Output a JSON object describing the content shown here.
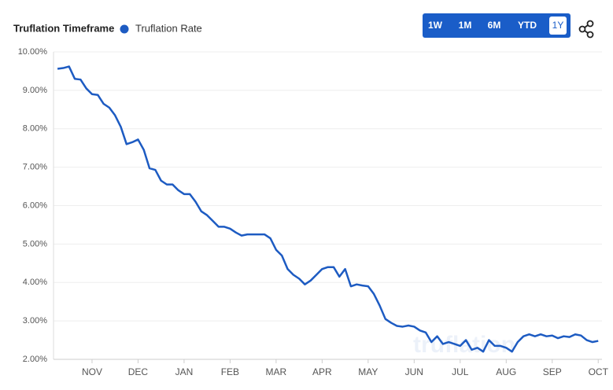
{
  "chart_data": {
    "type": "line",
    "title": "Truflation Timeframe",
    "buttons": [
      "1W",
      "1M",
      "6M",
      "YTD",
      "1Y"
    ],
    "selected_button": "1Y",
    "watermark": "truflation",
    "categories": [
      null,
      null,
      null,
      null,
      null,
      null,
      "NOV",
      null,
      null,
      null,
      null,
      null,
      null,
      null,
      "DEC",
      null,
      null,
      null,
      null,
      null,
      null,
      null,
      "JAN",
      null,
      null,
      null,
      null,
      null,
      null,
      null,
      "FEB",
      null,
      null,
      null,
      null,
      null,
      null,
      null,
      "MAR",
      null,
      null,
      null,
      null,
      null,
      null,
      null,
      "APR",
      null,
      null,
      null,
      null,
      null,
      null,
      null,
      "MAY",
      null,
      null,
      null,
      null,
      null,
      null,
      null,
      "JUN",
      null,
      null,
      null,
      null,
      null,
      null,
      null,
      "JUL",
      null,
      null,
      null,
      null,
      null,
      null,
      null,
      "AUG",
      null,
      null,
      null,
      null,
      null,
      null,
      null,
      "SEP",
      null,
      null,
      null,
      null,
      null,
      null,
      null,
      "OCT"
    ],
    "series": [
      {
        "name": "Truflation Rate",
        "color": "#1d5bc2",
        "values": [
          9.56,
          9.58,
          9.62,
          9.3,
          9.28,
          9.05,
          8.9,
          8.88,
          8.65,
          8.55,
          8.35,
          8.05,
          7.6,
          7.65,
          7.72,
          7.45,
          6.97,
          6.93,
          6.65,
          6.55,
          6.55,
          6.4,
          6.3,
          6.3,
          6.1,
          5.85,
          5.75,
          5.6,
          5.45,
          5.45,
          5.4,
          5.3,
          5.22,
          5.25,
          5.25,
          5.25,
          5.25,
          5.15,
          4.85,
          4.7,
          4.35,
          4.2,
          4.1,
          3.95,
          4.05,
          4.2,
          4.35,
          4.4,
          4.4,
          4.15,
          4.35,
          3.9,
          3.95,
          3.92,
          3.9,
          3.7,
          3.4,
          3.05,
          2.95,
          2.87,
          2.85,
          2.88,
          2.85,
          2.75,
          2.7,
          2.45,
          2.6,
          2.4,
          2.45,
          2.4,
          2.35,
          2.5,
          2.25,
          2.3,
          2.2,
          2.5,
          2.35,
          2.35,
          2.3,
          2.2,
          2.45,
          2.6,
          2.65,
          2.6,
          2.65,
          2.6,
          2.62,
          2.55,
          2.6,
          2.58,
          2.65,
          2.62,
          2.5,
          2.45,
          2.48
        ]
      }
    ],
    "ylim": [
      2,
      10
    ],
    "yticks": [
      {
        "value": 2,
        "label": "2.00%"
      },
      {
        "value": 3,
        "label": "3.00%"
      },
      {
        "value": 4,
        "label": "4.00%"
      },
      {
        "value": 5,
        "label": "5.00%"
      },
      {
        "value": 6,
        "label": "6.00%"
      },
      {
        "value": 7,
        "label": "7.00%"
      },
      {
        "value": 8,
        "label": "8.00%"
      },
      {
        "value": 9,
        "label": "9.00%"
      },
      {
        "value": 10,
        "label": "10.00%"
      }
    ],
    "grid": true
  }
}
